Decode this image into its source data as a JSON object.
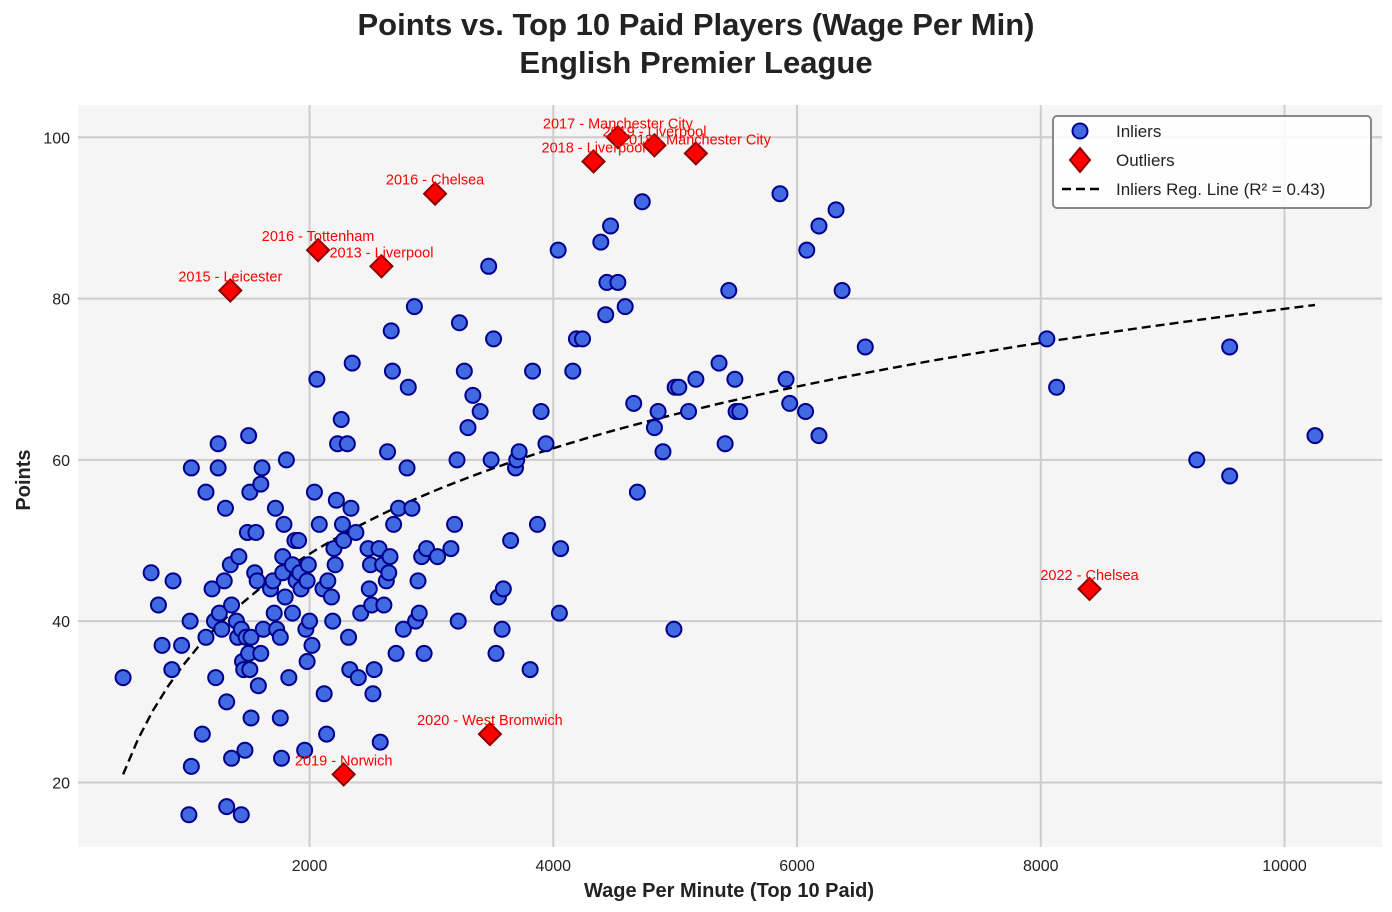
{
  "chart_data": {
    "type": "scatter",
    "title": "Points vs. Top 10 Paid Players (Wage Per Min)",
    "subtitle": "English Premier League",
    "xlabel": "Wage Per Minute (Top 10 Paid)",
    "ylabel": "Points",
    "xlim": [
      100,
      10800
    ],
    "ylim": [
      12,
      104
    ],
    "xticks": [
      2000,
      4000,
      6000,
      8000,
      10000
    ],
    "yticks": [
      20,
      40,
      60,
      80,
      100
    ],
    "grid": true,
    "legend_position": "top-right",
    "legend": [
      "Inliers",
      "Outliers",
      "Inliers Reg. Line (R² = 0.43)"
    ],
    "colors": {
      "inlier_fill": "#4169e1",
      "inlier_edge": "#00008b",
      "outlier_fill": "#ff0000",
      "outlier_edge": "#8b0000",
      "regression_line": "#000000",
      "annotation": "#ff0000",
      "plot_background": "#f5f5f5",
      "grid": "#cccccc"
    },
    "series": [
      {
        "name": "Inliers",
        "marker": "circle",
        "points": [
          [
            470,
            33
          ],
          [
            700,
            46
          ],
          [
            760,
            42
          ],
          [
            790,
            37
          ],
          [
            880,
            45
          ],
          [
            870,
            34
          ],
          [
            950,
            37
          ],
          [
            1010,
            16
          ],
          [
            1020,
            40
          ],
          [
            1030,
            22
          ],
          [
            1030,
            59
          ],
          [
            1120,
            26
          ],
          [
            1150,
            38
          ],
          [
            1150,
            56
          ],
          [
            1200,
            44
          ],
          [
            1220,
            40
          ],
          [
            1230,
            33
          ],
          [
            1250,
            59
          ],
          [
            1250,
            62
          ],
          [
            1260,
            41
          ],
          [
            1280,
            39
          ],
          [
            1300,
            45
          ],
          [
            1310,
            54
          ],
          [
            1320,
            30
          ],
          [
            1320,
            17
          ],
          [
            1350,
            47
          ],
          [
            1360,
            23
          ],
          [
            1360,
            42
          ],
          [
            1400,
            40
          ],
          [
            1410,
            38
          ],
          [
            1420,
            48
          ],
          [
            1440,
            39
          ],
          [
            1440,
            16
          ],
          [
            1450,
            35
          ],
          [
            1460,
            34
          ],
          [
            1470,
            24
          ],
          [
            1480,
            38
          ],
          [
            1490,
            51
          ],
          [
            1500,
            63
          ],
          [
            1500,
            36
          ],
          [
            1510,
            34
          ],
          [
            1510,
            56
          ],
          [
            1520,
            28
          ],
          [
            1520,
            38
          ],
          [
            1550,
            46
          ],
          [
            1560,
            51
          ],
          [
            1570,
            45
          ],
          [
            1580,
            32
          ],
          [
            1600,
            57
          ],
          [
            1600,
            36
          ],
          [
            1610,
            59
          ],
          [
            1620,
            39
          ],
          [
            1680,
            44
          ],
          [
            1700,
            45
          ],
          [
            1710,
            41
          ],
          [
            1720,
            54
          ],
          [
            1730,
            39
          ],
          [
            1760,
            38
          ],
          [
            1760,
            28
          ],
          [
            1770,
            23
          ],
          [
            1780,
            48
          ],
          [
            1780,
            46
          ],
          [
            1790,
            52
          ],
          [
            1800,
            43
          ],
          [
            1810,
            60
          ],
          [
            1830,
            33
          ],
          [
            1860,
            41
          ],
          [
            1860,
            47
          ],
          [
            1880,
            50
          ],
          [
            1890,
            45
          ],
          [
            1910,
            50
          ],
          [
            1920,
            46
          ],
          [
            1930,
            44
          ],
          [
            1960,
            24
          ],
          [
            1970,
            39
          ],
          [
            1980,
            35
          ],
          [
            1980,
            45
          ],
          [
            1990,
            47
          ],
          [
            2000,
            40
          ],
          [
            2020,
            37
          ],
          [
            2040,
            56
          ],
          [
            2060,
            70
          ],
          [
            2080,
            52
          ],
          [
            2110,
            44
          ],
          [
            2120,
            31
          ],
          [
            2140,
            26
          ],
          [
            2150,
            45
          ],
          [
            2180,
            43
          ],
          [
            2190,
            40
          ],
          [
            2200,
            49
          ],
          [
            2210,
            47
          ],
          [
            2220,
            55
          ],
          [
            2230,
            62
          ],
          [
            2260,
            65
          ],
          [
            2270,
            52
          ],
          [
            2280,
            50
          ],
          [
            2310,
            62
          ],
          [
            2320,
            38
          ],
          [
            2330,
            34
          ],
          [
            2340,
            54
          ],
          [
            2350,
            72
          ],
          [
            2380,
            51
          ],
          [
            2400,
            33
          ],
          [
            2420,
            41
          ],
          [
            2480,
            49
          ],
          [
            2490,
            44
          ],
          [
            2500,
            47
          ],
          [
            2510,
            42
          ],
          [
            2520,
            31
          ],
          [
            2530,
            34
          ],
          [
            2570,
            49
          ],
          [
            2580,
            25
          ],
          [
            2600,
            47
          ],
          [
            2610,
            42
          ],
          [
            2630,
            45
          ],
          [
            2640,
            61
          ],
          [
            2650,
            46
          ],
          [
            2660,
            48
          ],
          [
            2670,
            76
          ],
          [
            2680,
            71
          ],
          [
            2690,
            52
          ],
          [
            2710,
            36
          ],
          [
            2730,
            54
          ],
          [
            2770,
            39
          ],
          [
            2800,
            59
          ],
          [
            2810,
            69
          ],
          [
            2840,
            54
          ],
          [
            2860,
            79
          ],
          [
            2870,
            40
          ],
          [
            2890,
            45
          ],
          [
            2900,
            41
          ],
          [
            2920,
            48
          ],
          [
            2940,
            36
          ],
          [
            2960,
            49
          ],
          [
            3050,
            48
          ],
          [
            3160,
            49
          ],
          [
            3190,
            52
          ],
          [
            3210,
            60
          ],
          [
            3220,
            40
          ],
          [
            3230,
            77
          ],
          [
            3270,
            71
          ],
          [
            3300,
            64
          ],
          [
            3340,
            68
          ],
          [
            3400,
            66
          ],
          [
            3470,
            84
          ],
          [
            3490,
            60
          ],
          [
            3510,
            75
          ],
          [
            3530,
            36
          ],
          [
            3550,
            43
          ],
          [
            3580,
            39
          ],
          [
            3590,
            44
          ],
          [
            3650,
            50
          ],
          [
            3690,
            59
          ],
          [
            3700,
            60
          ],
          [
            3720,
            61
          ],
          [
            3810,
            34
          ],
          [
            3830,
            71
          ],
          [
            3870,
            52
          ],
          [
            3900,
            66
          ],
          [
            3940,
            62
          ],
          [
            4040,
            86
          ],
          [
            4050,
            41
          ],
          [
            4060,
            49
          ],
          [
            4160,
            71
          ],
          [
            4190,
            75
          ],
          [
            4240,
            75
          ],
          [
            4390,
            87
          ],
          [
            4430,
            78
          ],
          [
            4440,
            82
          ],
          [
            4470,
            89
          ],
          [
            4530,
            82
          ],
          [
            4590,
            79
          ],
          [
            4660,
            67
          ],
          [
            4690,
            56
          ],
          [
            4730,
            92
          ],
          [
            4830,
            64
          ],
          [
            4860,
            66
          ],
          [
            4900,
            61
          ],
          [
            4990,
            39
          ],
          [
            5000,
            69
          ],
          [
            5030,
            69
          ],
          [
            5110,
            66
          ],
          [
            5170,
            70
          ],
          [
            5360,
            72
          ],
          [
            5410,
            62
          ],
          [
            5440,
            81
          ],
          [
            5490,
            70
          ],
          [
            5500,
            66
          ],
          [
            5530,
            66
          ],
          [
            5860,
            93
          ],
          [
            5910,
            70
          ],
          [
            5940,
            67
          ],
          [
            6070,
            66
          ],
          [
            6080,
            86
          ],
          [
            6180,
            63
          ],
          [
            6180,
            89
          ],
          [
            6320,
            91
          ],
          [
            6370,
            81
          ],
          [
            6560,
            74
          ],
          [
            8050,
            75
          ],
          [
            8130,
            69
          ],
          [
            9280,
            60
          ],
          [
            9550,
            58
          ],
          [
            9550,
            74
          ],
          [
            10250,
            63
          ]
        ]
      },
      {
        "name": "Outliers",
        "marker": "diamond",
        "points": [
          {
            "x": 1350,
            "y": 81,
            "label": "2015 - Leicester"
          },
          {
            "x": 2070,
            "y": 86,
            "label": "2016 - Tottenham"
          },
          {
            "x": 2590,
            "y": 84,
            "label": "2013 - Liverpool"
          },
          {
            "x": 3030,
            "y": 93,
            "label": "2016 - Chelsea"
          },
          {
            "x": 4330,
            "y": 97,
            "label": "2018 - Liverpool"
          },
          {
            "x": 4530,
            "y": 100,
            "label": "2017 - Manchester City"
          },
          {
            "x": 4830,
            "y": 99,
            "label": "2019 - Liverpool"
          },
          {
            "x": 5170,
            "y": 98,
            "label": "2018 - Manchester City"
          },
          {
            "x": 8400,
            "y": 44,
            "label": "2022 - Chelsea"
          },
          {
            "x": 3480,
            "y": 26,
            "label": "2020 - West Bromwich"
          },
          {
            "x": 2280,
            "y": 21,
            "label": "2019 - Norwich"
          }
        ]
      },
      {
        "name": "Inliers Reg. Line (R² = 0.43)",
        "type": "line",
        "style": "dashed",
        "x_range": [
          470,
          10250
        ],
        "y_at_x_range": [
          21,
          79.2
        ]
      }
    ]
  }
}
